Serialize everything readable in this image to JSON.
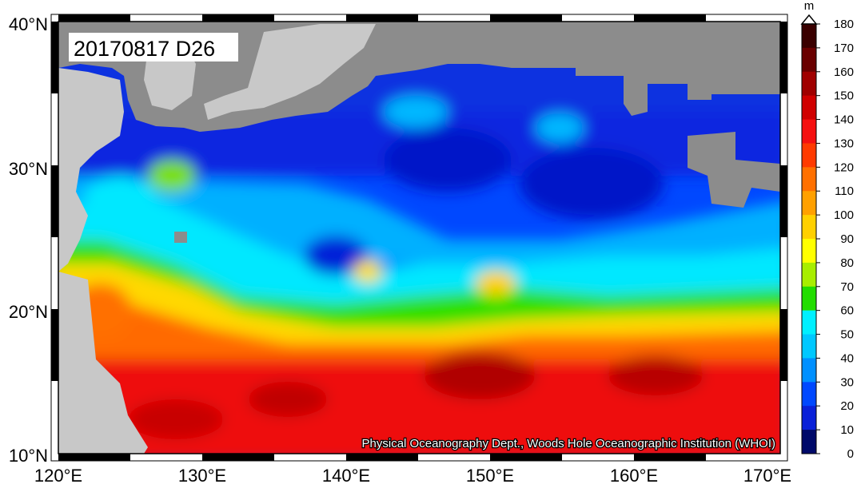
{
  "map": {
    "date_label": "20170817 D26",
    "credit": "Physical Oceanography Dept., Woods Hole Oceanographic Institution (WHOI)",
    "lon_labels": [
      "120°E",
      "130°E",
      "140°E",
      "150°E",
      "160°E",
      "170°E"
    ],
    "lat_labels": [
      "40°N",
      "30°N",
      "20°N",
      "10°N"
    ],
    "lon_range": [
      120,
      170
    ],
    "lat_range": [
      10,
      40
    ],
    "land_color": "#8c8c8c",
    "land_light_color": "#c8c8c8"
  },
  "colorbar": {
    "unit": "m",
    "labels": [
      "180",
      "170",
      "160",
      "150",
      "140",
      "130",
      "120",
      "110",
      "100",
      "90",
      "80",
      "70",
      "60",
      "50",
      "40",
      "30",
      "20",
      "10",
      "0"
    ],
    "colors": [
      "#3a0000",
      "#6a0000",
      "#a00000",
      "#d00000",
      "#f51010",
      "#ff3a00",
      "#ff7000",
      "#ffa000",
      "#ffd000",
      "#ffff00",
      "#a8ee00",
      "#22dd00",
      "#00f0ff",
      "#00c8ff",
      "#0090ff",
      "#0048ff",
      "#0a20d8",
      "#001a9a",
      "#000a6a"
    ]
  }
}
